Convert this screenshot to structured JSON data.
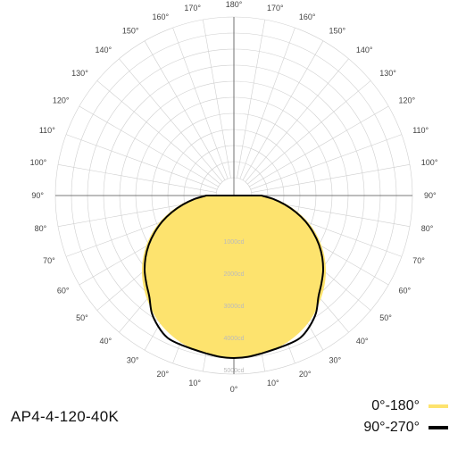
{
  "model_label": "AP4-4-120-40K",
  "chart_data": {
    "type": "polar",
    "angle_labels_left": [
      "0°",
      "10°",
      "20°",
      "30°",
      "40°",
      "50°",
      "60°",
      "70°",
      "80°",
      "90°",
      "100°",
      "110°",
      "120°",
      "130°",
      "140°",
      "150°",
      "160°",
      "170°",
      "180°"
    ],
    "angle_labels_right": [
      "10°",
      "20°",
      "30°",
      "40°",
      "50°",
      "60°",
      "70°",
      "80°",
      "90°",
      "100°",
      "110°",
      "120°",
      "130°",
      "140°",
      "150°",
      "160°",
      "170°"
    ],
    "radial_labels": [
      "1000cd",
      "2000cd",
      "3000cd",
      "4000cd",
      "5000cd"
    ],
    "r_max": 5000,
    "grid": true,
    "legend_position": "bottom-right",
    "series": [
      {
        "name": "0°-180°",
        "color": "#fde36e",
        "style": "filled",
        "angles": [
          0,
          10,
          20,
          30,
          40,
          50,
          60,
          70,
          80,
          90
        ],
        "values": [
          4480,
          4450,
          4300,
          4040,
          3650,
          3180,
          2600,
          1920,
          1150,
          420
        ]
      },
      {
        "name": "90°-270°",
        "color": "#000000",
        "style": "line",
        "angles": [
          0,
          5,
          10,
          15,
          20,
          25,
          30,
          35,
          40,
          45,
          50,
          55,
          60,
          65,
          70,
          75,
          80,
          85,
          90
        ],
        "values": [
          4500,
          4480,
          4430,
          4390,
          4370,
          4330,
          4150,
          3900,
          3540,
          3300,
          3070,
          2800,
          2500,
          2170,
          1820,
          1440,
          1050,
          670,
          300
        ]
      }
    ]
  }
}
